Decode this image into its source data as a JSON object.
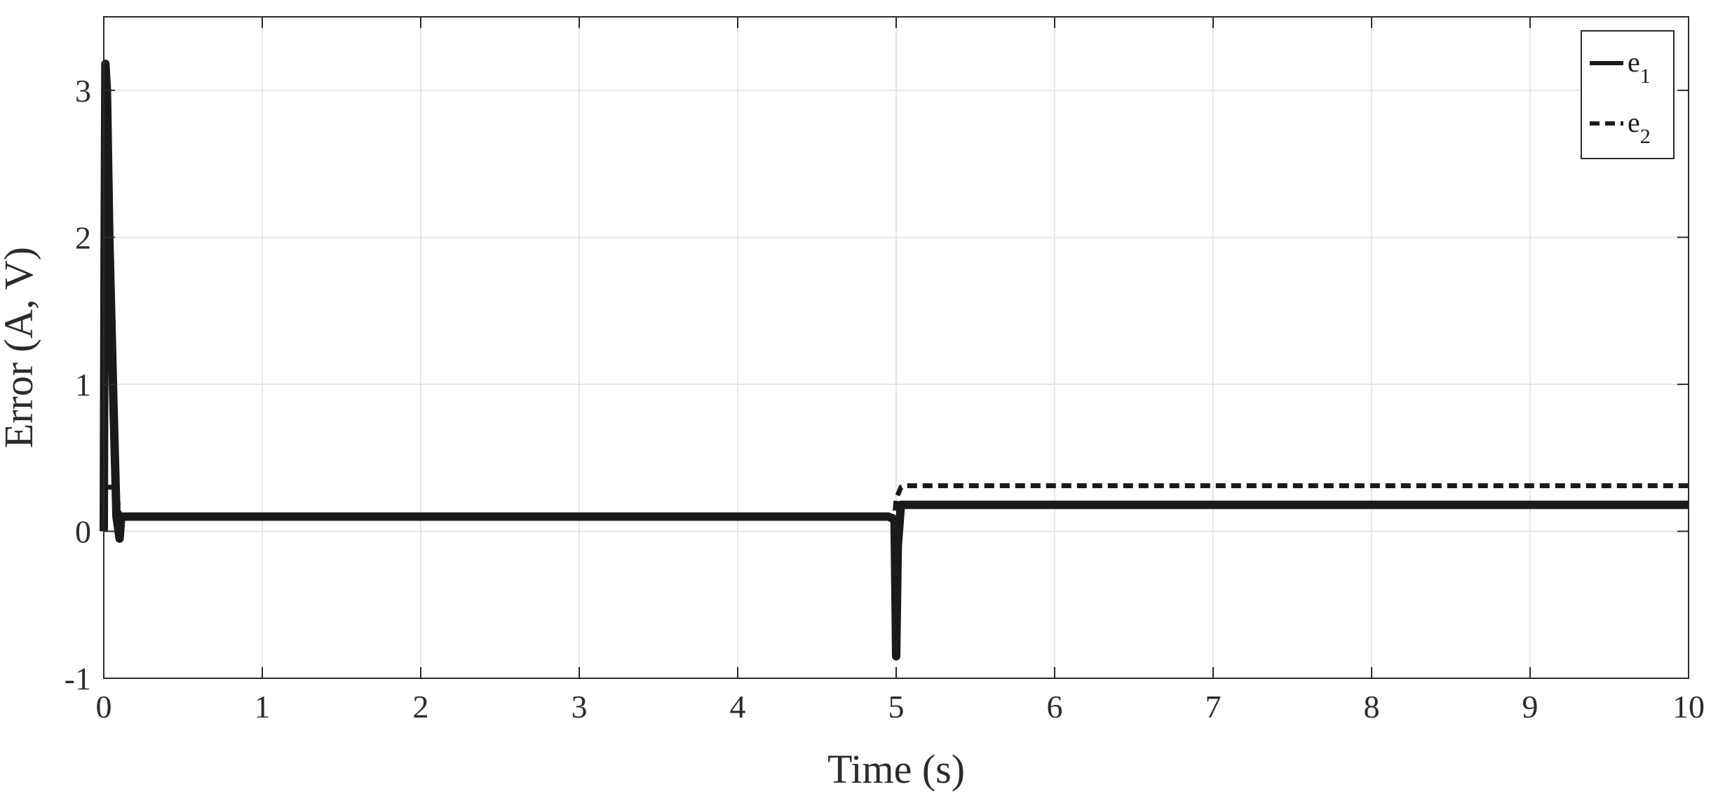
{
  "chart_data": {
    "type": "line",
    "xlabel": "Time (s)",
    "ylabel": "Error (A, V)",
    "xlim": [
      0,
      10
    ],
    "ylim": [
      -1,
      3.5
    ],
    "xticks": [
      0,
      1,
      2,
      3,
      4,
      5,
      6,
      7,
      8,
      9,
      10
    ],
    "yticks": [
      -1,
      0,
      1,
      2,
      3
    ],
    "grid": true,
    "legend_position": "top-right",
    "series": [
      {
        "name": "e1",
        "name_base": "e",
        "name_sub": "1",
        "style": "solid",
        "color": "#1a1a1a",
        "x": [
          0,
          0.005,
          0.01,
          0.02,
          0.035,
          0.06,
          0.08,
          0.1,
          0.11,
          0.13,
          0.2,
          1,
          2,
          3,
          4,
          4.95,
          4.99,
          5.0,
          5.01,
          5.03,
          5.06,
          5.2,
          6,
          7,
          8,
          9,
          10
        ],
        "y": [
          0,
          1.8,
          3.18,
          3.0,
          2.0,
          0.9,
          0.1,
          -0.05,
          0.1,
          0.1,
          0.1,
          0.1,
          0.1,
          0.1,
          0.1,
          0.1,
          0.08,
          -0.85,
          -0.1,
          0.18,
          0.18,
          0.18,
          0.18,
          0.18,
          0.18,
          0.18,
          0.18
        ]
      },
      {
        "name": "e2",
        "name_base": "e",
        "name_sub": "2",
        "style": "dashed",
        "color": "#1a1a1a",
        "x": [
          0,
          0.01,
          0.02,
          0.06,
          0.08,
          0.1,
          0.13,
          0.2,
          1,
          2,
          3,
          4,
          4.99,
          5.0,
          5.03,
          5.06,
          5.2,
          6,
          7,
          8,
          9,
          10
        ],
        "y": [
          0,
          0.3,
          0.3,
          0.3,
          0.28,
          0.1,
          0.1,
          0.1,
          0.1,
          0.1,
          0.1,
          0.1,
          0.1,
          0.22,
          0.3,
          0.31,
          0.31,
          0.31,
          0.31,
          0.31,
          0.31,
          0.31
        ]
      }
    ]
  }
}
